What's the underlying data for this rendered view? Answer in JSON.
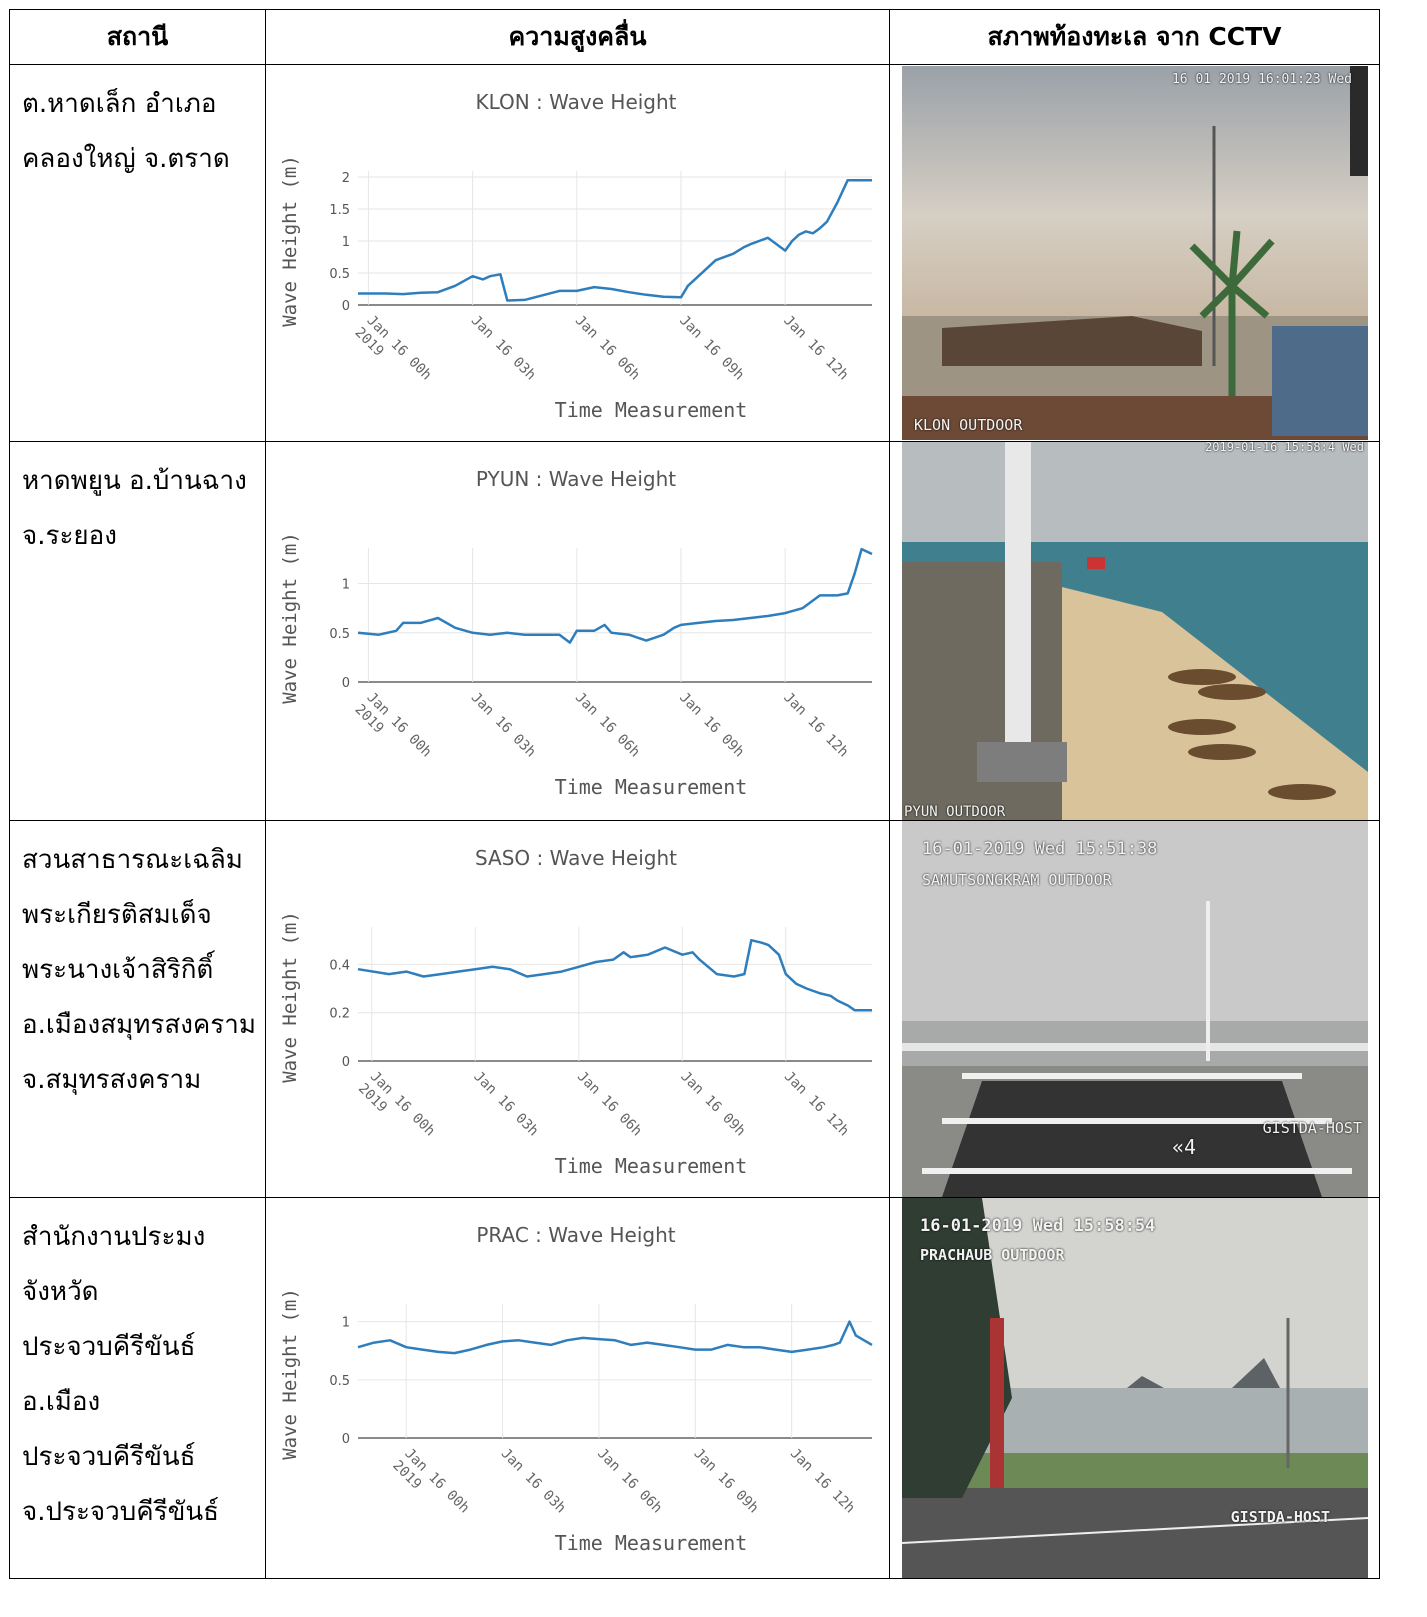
{
  "headers": [
    "สถานี",
    "ความสูงคลื่น",
    "สภาพท้องทะเล จาก CCTV"
  ],
  "common": {
    "xlabel": "Time Measurement",
    "ylabel": "Wave Height  (m)",
    "x_ticks": [
      "Jan 16 00h|2019",
      "Jan 16 03h",
      "Jan 16 06h",
      "Jan 16 09h",
      "Jan 16 12h"
    ]
  },
  "rows": [
    {
      "station_lines": [
        "ต.หาดเล็ก อำเภอ",
        "คลองใหญ่ จ.ตราด"
      ],
      "cam": {
        "timestamp": "16 01 2019 16:01:23 Wed",
        "label": "KLON OUTDOOR"
      }
    },
    {
      "station_lines": [
        "หาดพยูน อ.บ้านฉาง",
        "จ.ระยอง"
      ],
      "cam": {
        "timestamp": "2019-01-16 15:58:4 Wed",
        "label": "PYUN OUTDOOR"
      }
    },
    {
      "station_lines": [
        "สวนสาธารณะเฉลิม",
        "พระเกียรติสมเด็จ",
        "พระนางเจ้าสิริกิติ์",
        "อ.เมืองสมุทรสงคราม",
        "จ.สมุทรสงคราม"
      ],
      "cam": {
        "timestamp": "16-01-2019 Wed 15:51:38",
        "label": "SAMUTSONGKRAM OUTDOOR",
        "overlay": "GISTDA-HOST",
        "channel": "4"
      }
    },
    {
      "station_lines": [
        "สำนักงานประมง",
        "จังหวัด",
        "ประจวบคีรีขันธ์",
        "อ.เมือง",
        "ประจวบคีรีขันธ์",
        "จ.ประจวบคีรีขันธ์"
      ],
      "cam": {
        "timestamp": "16-01-2019 Wed 15:58:54",
        "label": "PRACHAUB OUTDOOR",
        "overlay": "GISTDA-HOST"
      }
    }
  ],
  "chart_data": [
    {
      "type": "line",
      "title": "KLON : Wave Height",
      "xlabel": "Time Measurement",
      "ylabel": "Wave Height  (m)",
      "ylim": [
        0,
        2
      ],
      "y_ticks": [
        0,
        0.5,
        1,
        1.5,
        2
      ],
      "xlim_h": [
        -0.3,
        14.5
      ],
      "x_hours": [
        -0.3,
        0.5,
        1,
        1.5,
        2,
        2.5,
        3,
        3.3,
        3.5,
        3.8,
        4,
        4.5,
        5,
        5.5,
        6,
        6.5,
        7,
        7.5,
        8,
        8.5,
        9,
        9.2,
        9.5,
        10,
        10.5,
        10.8,
        11,
        11.5,
        12,
        12.2,
        12.4,
        12.6,
        12.8,
        13,
        13.2,
        13.5,
        13.8,
        14,
        14.5
      ],
      "values": [
        0.18,
        0.18,
        0.17,
        0.19,
        0.2,
        0.3,
        0.45,
        0.4,
        0.45,
        0.48,
        0.07,
        0.08,
        0.15,
        0.22,
        0.22,
        0.28,
        0.25,
        0.2,
        0.16,
        0.13,
        0.12,
        0.3,
        0.45,
        0.7,
        0.8,
        0.9,
        0.95,
        1.05,
        0.85,
        1.0,
        1.1,
        1.15,
        1.12,
        1.2,
        1.3,
        1.6,
        1.95,
        1.95,
        1.95
      ],
      "color": "#2e7ebd"
    },
    {
      "type": "line",
      "title": "PYUN : Wave Height",
      "xlabel": "Time Measurement",
      "ylabel": "Wave Height  (m)",
      "ylim": [
        0,
        1.3
      ],
      "y_ticks": [
        0,
        0.5,
        1
      ],
      "xlim_h": [
        -0.3,
        14.5
      ],
      "x_hours": [
        -0.3,
        0.3,
        0.8,
        1,
        1.5,
        2,
        2.5,
        3,
        3.5,
        4,
        4.5,
        5,
        5.5,
        5.8,
        6,
        6.5,
        6.8,
        7,
        7.5,
        8,
        8.5,
        8.8,
        9,
        9.5,
        10,
        10.5,
        11,
        11.5,
        12,
        12.5,
        13,
        13.5,
        13.8,
        14,
        14.2,
        14.5
      ],
      "values": [
        0.5,
        0.48,
        0.52,
        0.6,
        0.6,
        0.65,
        0.55,
        0.5,
        0.48,
        0.5,
        0.48,
        0.48,
        0.48,
        0.4,
        0.52,
        0.52,
        0.58,
        0.5,
        0.48,
        0.42,
        0.48,
        0.55,
        0.58,
        0.6,
        0.62,
        0.63,
        0.65,
        0.67,
        0.7,
        0.75,
        0.88,
        0.88,
        0.9,
        1.1,
        1.35,
        1.3
      ],
      "color": "#2e7ebd"
    },
    {
      "type": "line",
      "title": "SASO : Wave Height",
      "xlabel": "Time Measurement",
      "ylabel": "Wave Height  (m)",
      "ylim": [
        0,
        0.53
      ],
      "y_ticks": [
        0,
        0.2,
        0.4
      ],
      "xlim_h": [
        -0.4,
        14.5
      ],
      "x_hours": [
        -0.4,
        0.5,
        1,
        1.5,
        2,
        2.5,
        3,
        3.5,
        4,
        4.5,
        5,
        5.5,
        6,
        6.5,
        7,
        7.3,
        7.5,
        8,
        8.5,
        9,
        9.3,
        9.5,
        10,
        10.5,
        10.8,
        11,
        11.3,
        11.5,
        11.8,
        12,
        12.3,
        12.6,
        13,
        13.3,
        13.5,
        13.8,
        14,
        14.5
      ],
      "values": [
        0.38,
        0.36,
        0.37,
        0.35,
        0.36,
        0.37,
        0.38,
        0.39,
        0.38,
        0.35,
        0.36,
        0.37,
        0.39,
        0.41,
        0.42,
        0.45,
        0.43,
        0.44,
        0.47,
        0.44,
        0.45,
        0.42,
        0.36,
        0.35,
        0.36,
        0.5,
        0.49,
        0.48,
        0.44,
        0.36,
        0.32,
        0.3,
        0.28,
        0.27,
        0.25,
        0.23,
        0.21,
        0.21
      ],
      "color": "#2e7ebd"
    },
    {
      "type": "line",
      "title": "PRAC : Wave Height",
      "xlabel": "Time Measurement",
      "ylabel": "Wave Height  (m)",
      "ylim": [
        0,
        1.1
      ],
      "y_ticks": [
        0,
        0.5,
        1
      ],
      "xlim_h": [
        -1.5,
        14.5
      ],
      "x_hours": [
        -1.5,
        -1,
        -0.5,
        0,
        0.5,
        1,
        1.5,
        2,
        2.5,
        3,
        3.5,
        4,
        4.5,
        5,
        5.5,
        6,
        6.5,
        7,
        7.5,
        8,
        8.5,
        9,
        9.5,
        10,
        10.5,
        11,
        11.5,
        12,
        12.5,
        13,
        13.3,
        13.5,
        13.8,
        14,
        14.5
      ],
      "values": [
        0.78,
        0.82,
        0.84,
        0.78,
        0.76,
        0.74,
        0.73,
        0.76,
        0.8,
        0.83,
        0.84,
        0.82,
        0.8,
        0.84,
        0.86,
        0.85,
        0.84,
        0.8,
        0.82,
        0.8,
        0.78,
        0.76,
        0.76,
        0.8,
        0.78,
        0.78,
        0.76,
        0.74,
        0.76,
        0.78,
        0.8,
        0.82,
        1.0,
        0.88,
        0.8
      ],
      "color": "#2e7ebd"
    }
  ]
}
